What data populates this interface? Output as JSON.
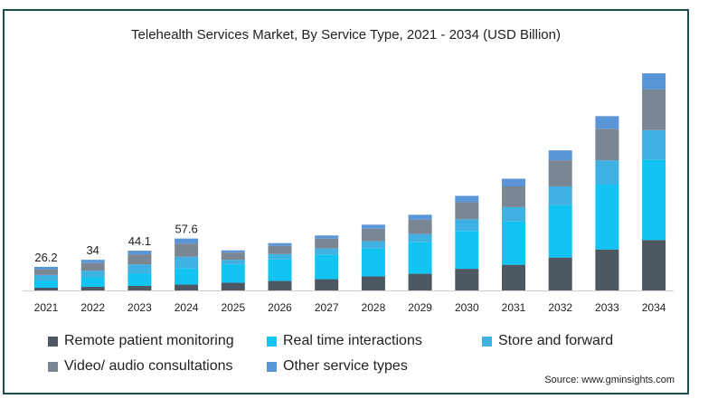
{
  "chart_data": {
    "type": "bar",
    "stacked": true,
    "title": "Telehealth Services Market, By Service Type, 2021 - 2034 (USD Billion)",
    "xlabel": "",
    "ylabel": "",
    "ylim": [
      0,
      230
    ],
    "grid": false,
    "legend_position": "bottom",
    "categories": [
      "2021",
      "2022",
      "2023",
      "2024",
      "2025",
      "2026",
      "2027",
      "2028",
      "2029",
      "2030",
      "2031",
      "2032",
      "2033",
      "2034"
    ],
    "totals_labels": [
      "26.2",
      "34",
      "44.1",
      "57.6",
      "",
      "",
      "",
      "",
      "",
      "",
      "",
      "",
      "",
      ""
    ],
    "series": [
      {
        "name": "Remote patient monitoring",
        "color": "#4d5863",
        "values": [
          3.0,
          4.0,
          5.0,
          6.5,
          8.5,
          10.5,
          12.5,
          15.5,
          18.5,
          24.0,
          28.5,
          36.5,
          45.5,
          56.0
        ]
      },
      {
        "name": "Real time interactions",
        "color": "#12c4f2",
        "values": [
          8.0,
          10.5,
          14.0,
          18.0,
          20.5,
          24.0,
          27.0,
          31.0,
          35.0,
          42.0,
          48.0,
          58.0,
          72.0,
          89.0
        ]
      },
      {
        "name": "Store and forward",
        "color": "#3fb1e3",
        "values": [
          6.2,
          7.5,
          9.8,
          12.9,
          5.0,
          6.0,
          7.0,
          8.0,
          9.0,
          13.0,
          16.0,
          21.0,
          27.0,
          33.0
        ]
      },
      {
        "name": "Video/ audio consultations",
        "color": "#7a8792",
        "values": [
          6.0,
          8.5,
          11.3,
          14.7,
          8.0,
          9.0,
          11.0,
          14.0,
          16.0,
          19.0,
          23.0,
          29.0,
          35.0,
          45.0
        ]
      },
      {
        "name": "Other service types",
        "color": "#5a96d7",
        "values": [
          3.0,
          3.5,
          4.0,
          5.5,
          2.5,
          3.0,
          3.5,
          4.5,
          5.5,
          7.0,
          8.5,
          11.0,
          14.0,
          18.0
        ]
      }
    ],
    "source": "Source: www.gminsights.com"
  }
}
